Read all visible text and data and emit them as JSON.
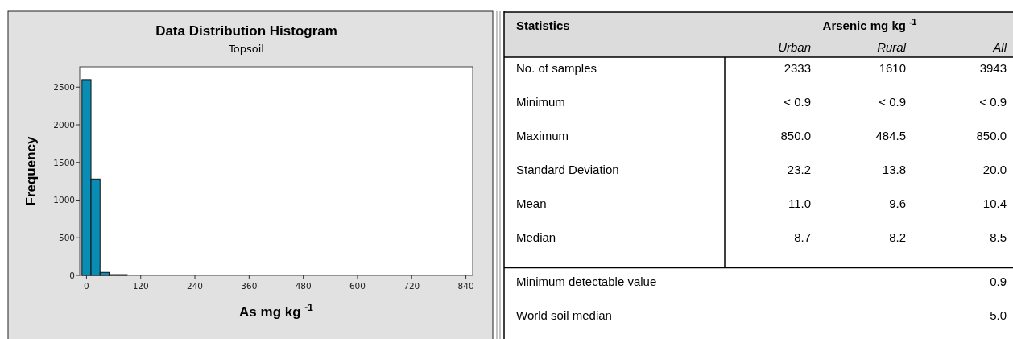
{
  "chart_data": [
    {
      "type": "histogram",
      "title": "Data Distribution Histogram",
      "subtitle": "Topsoil",
      "xlabel": "As mg kg $^{-1}$",
      "ylabel": "Frequency",
      "color": "#0a8db5",
      "bins": [
        -10,
        10,
        30,
        50,
        70,
        90,
        110,
        130,
        150,
        170,
        190,
        210,
        230,
        250,
        270,
        290,
        310,
        330,
        350,
        370,
        390,
        410,
        430,
        450,
        470,
        490,
        510,
        530,
        550,
        570,
        590,
        610,
        630,
        650,
        670,
        690,
        710,
        730,
        750,
        770,
        790,
        810,
        830,
        850
      ],
      "values": [
        2600,
        1280,
        40,
        10,
        10,
        0,
        0,
        0,
        0,
        0,
        0,
        0,
        0,
        0,
        0,
        0,
        0,
        0,
        0,
        0,
        0,
        0,
        0,
        0,
        0,
        0,
        0,
        0,
        0,
        0,
        0,
        0,
        0,
        0,
        0,
        0,
        0,
        0,
        0,
        0,
        0,
        0,
        0
      ],
      "xlim": [
        -15,
        855
      ],
      "xticks": [
        0,
        120,
        240,
        360,
        480,
        600,
        720,
        840
      ],
      "ylim": [
        0,
        2770
      ],
      "yticks": [
        0,
        500,
        1000,
        1500,
        2000,
        2500
      ],
      "grid": false
    },
    {
      "type": "other",
      "title": "Arsenic mg kg $^{-1}$",
      "ylabel": "Statistics",
      "categories": [
        "No. of samples",
        "Minimum",
        "Maximum",
        "Standard Deviation",
        "Mean",
        "Median",
        "Minimum detectable value",
        "World soil median"
      ],
      "series": [
        {
          "name": "Urban",
          "values": [
            2333,
            0.9,
            850.0,
            23.2,
            11.0,
            8.7,
            null,
            null
          ],
          "value_labels": [
            "2333",
            "< 0.9",
            "850.0",
            "23.2",
            "11.0",
            "8.7",
            null,
            null
          ]
        },
        {
          "name": "Rural",
          "values": [
            1610,
            0.9,
            484.5,
            13.8,
            9.6,
            8.2,
            null,
            null
          ],
          "value_labels": [
            "1610",
            "< 0.9",
            "484.5",
            "13.8",
            "9.6",
            "8.2",
            null,
            null
          ]
        },
        {
          "name": "All",
          "values": [
            3943,
            0.9,
            850.0,
            20.0,
            10.4,
            8.5,
            0.9,
            5.0
          ],
          "value_labels": [
            "3943",
            "< 0.9",
            "850.0",
            "20.0",
            "10.4",
            "8.5",
            "0.9",
            "5.0"
          ]
        }
      ]
    }
  ]
}
